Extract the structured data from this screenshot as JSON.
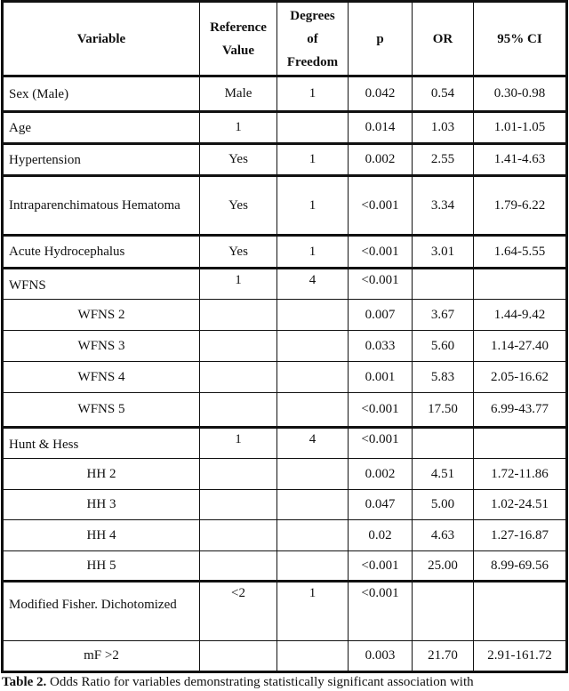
{
  "headers": [
    "Variable",
    "Reference Value",
    "Degrees of Freedom",
    "p",
    "OR",
    "95% CI"
  ],
  "header_lines": {
    "ref": [
      "Reference",
      "Value"
    ],
    "df": [
      "Degrees",
      "of",
      "Freedom"
    ]
  },
  "rows": [
    {
      "variable": "Sex (Male)",
      "ref": "Male",
      "df": "1",
      "p": "0.042",
      "or": "0.54",
      "ci": "0.30-0.98"
    },
    {
      "variable": "Age",
      "ref": "1",
      "df": "",
      "p": "0.014",
      "or": "1.03",
      "ci": "1.01-1.05"
    },
    {
      "variable": "Hypertension",
      "ref": "Yes",
      "df": "1",
      "p": "0.002",
      "or": "2.55",
      "ci": "1.41-4.63"
    },
    {
      "variable": "Intraparenchimatous Hematoma",
      "ref": "Yes",
      "df": "1",
      "p": "<0.001",
      "or": "3.34",
      "ci": "1.79-6.22"
    },
    {
      "variable": "Acute Hydrocephalus",
      "ref": "Yes",
      "df": "1",
      "p": "<0.001",
      "or": "3.01",
      "ci": "1.64-5.55"
    },
    {
      "variable": "WFNS",
      "ref": "1",
      "df": "4",
      "p": "<0.001",
      "or": "",
      "ci": ""
    },
    {
      "variable": "WFNS 2",
      "ref": "",
      "df": "",
      "p": "0.007",
      "or": "3.67",
      "ci": "1.44-9.42"
    },
    {
      "variable": "WFNS 3",
      "ref": "",
      "df": "",
      "p": "0.033",
      "or": "5.60",
      "ci": "1.14-27.40"
    },
    {
      "variable": "WFNS 4",
      "ref": "",
      "df": "",
      "p": "0.001",
      "or": "5.83",
      "ci": "2.05-16.62"
    },
    {
      "variable": "WFNS 5",
      "ref": "",
      "df": "",
      "p": "<0.001",
      "or": "17.50",
      "ci": "6.99-43.77"
    },
    {
      "variable": "Hunt & Hess",
      "ref": "1",
      "df": "4",
      "p": "<0.001",
      "or": "",
      "ci": ""
    },
    {
      "variable": "HH 2",
      "ref": "",
      "df": "",
      "p": "0.002",
      "or": "4.51",
      "ci": "1.72-11.86"
    },
    {
      "variable": "HH 3",
      "ref": "",
      "df": "",
      "p": "0.047",
      "or": "5.00",
      "ci": "1.02-24.51"
    },
    {
      "variable": "HH 4",
      "ref": "",
      "df": "",
      "p": "0.02",
      "or": "4.63",
      "ci": "1.27-16.87"
    },
    {
      "variable": "HH 5",
      "ref": "",
      "df": "",
      "p": "<0.001",
      "or": "25.00",
      "ci": "8.99-69.56"
    },
    {
      "variable": "Modified Fisher. Dichotomized",
      "ref": "<2",
      "df": "1",
      "p": "<0.001",
      "or": "",
      "ci": ""
    },
    {
      "variable": "mF >2",
      "ref": "",
      "df": "",
      "p": "0.003",
      "or": "21.70",
      "ci": "2.91-161.72"
    }
  ],
  "caption": {
    "label": "Table 2.",
    "text": " Odds Ratio for variables demonstrating statistically significant association with"
  }
}
